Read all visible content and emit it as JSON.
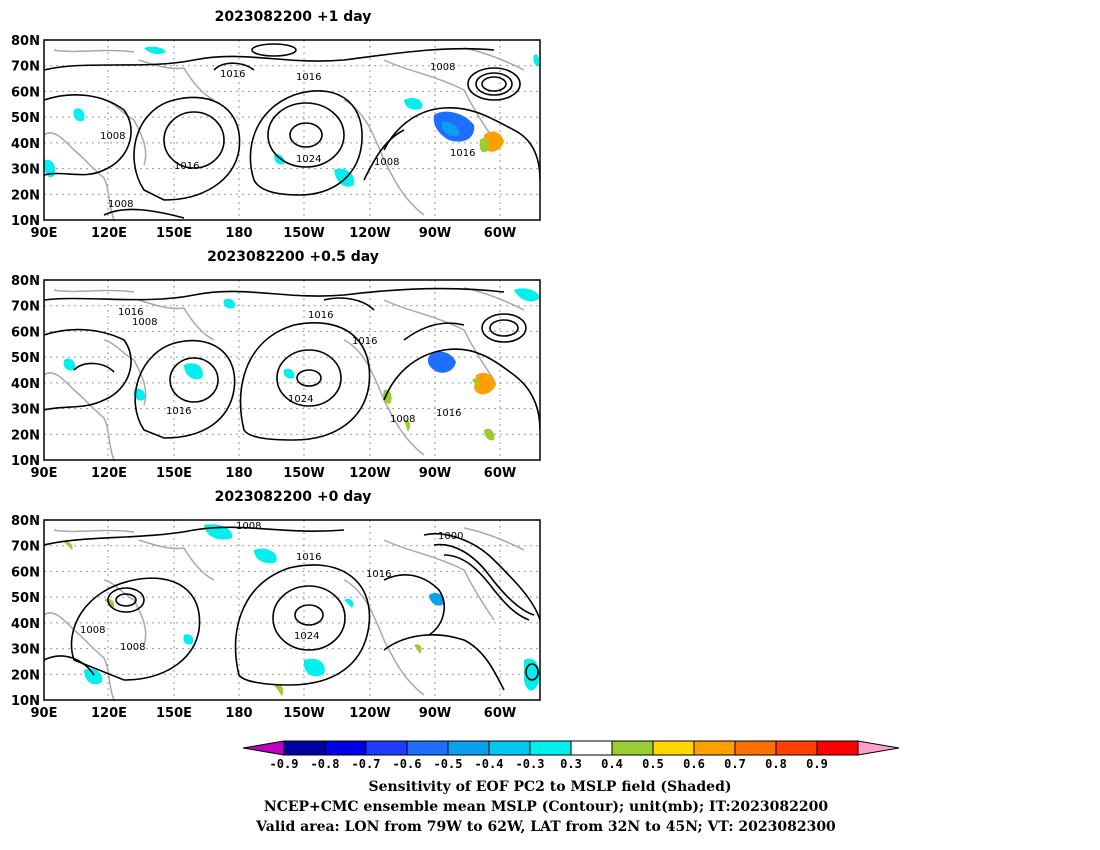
{
  "panels": [
    {
      "title": "2023082200  +1 day",
      "contour_labels": [
        "1016",
        "1016",
        "1008",
        "1008",
        "1016",
        "1024",
        "1008",
        "1016",
        "1008"
      ]
    },
    {
      "title": "2023082200  +0.5 day",
      "contour_labels": [
        "1016",
        "1008",
        "1016",
        "1016",
        "1016",
        "1024",
        "1008",
        "1016"
      ]
    },
    {
      "title": "2023082200  +0 day",
      "contour_labels": [
        "1008",
        "1016",
        "1000",
        "1016",
        "1008",
        "1008",
        "1024"
      ]
    }
  ],
  "axes": {
    "lat_labels": [
      "80N",
      "70N",
      "60N",
      "50N",
      "40N",
      "30N",
      "20N",
      "10N"
    ],
    "lon_labels": [
      "90E",
      "120E",
      "150E",
      "180",
      "150W",
      "120W",
      "90W",
      "60W"
    ]
  },
  "colorbar": {
    "ticks": [
      "-0.9",
      "-0.8",
      "-0.7",
      "-0.6",
      "-0.5",
      "-0.4",
      "-0.3",
      "0.3",
      "0.4",
      "0.5",
      "0.6",
      "0.7",
      "0.8",
      "0.9"
    ],
    "colors": [
      "#c000c0",
      "#0000a0",
      "#0000e6",
      "#1e3cff",
      "#1e6eff",
      "#0aa0f0",
      "#00c8f0",
      "#00f0f0",
      "#ffffff",
      "#9acd32",
      "#ffd700",
      "#ffa000",
      "#ff7000",
      "#ff4000",
      "#ff0000",
      "#ffa0c8"
    ]
  },
  "caption": {
    "line1": "Sensitivity of EOF PC2 to MSLP field (Shaded)",
    "line2": "NCEP+CMC ensemble mean MSLP (Contour); unit(mb); IT:2023082200",
    "line3": "Valid area: LON from 79W to 62W, LAT from 32N to 45N; VT: 2023082300"
  },
  "colors": {
    "contour": "#000000",
    "coastline": "#a8a8a8",
    "grid": "#9a9a9a",
    "frame": "#000000"
  }
}
